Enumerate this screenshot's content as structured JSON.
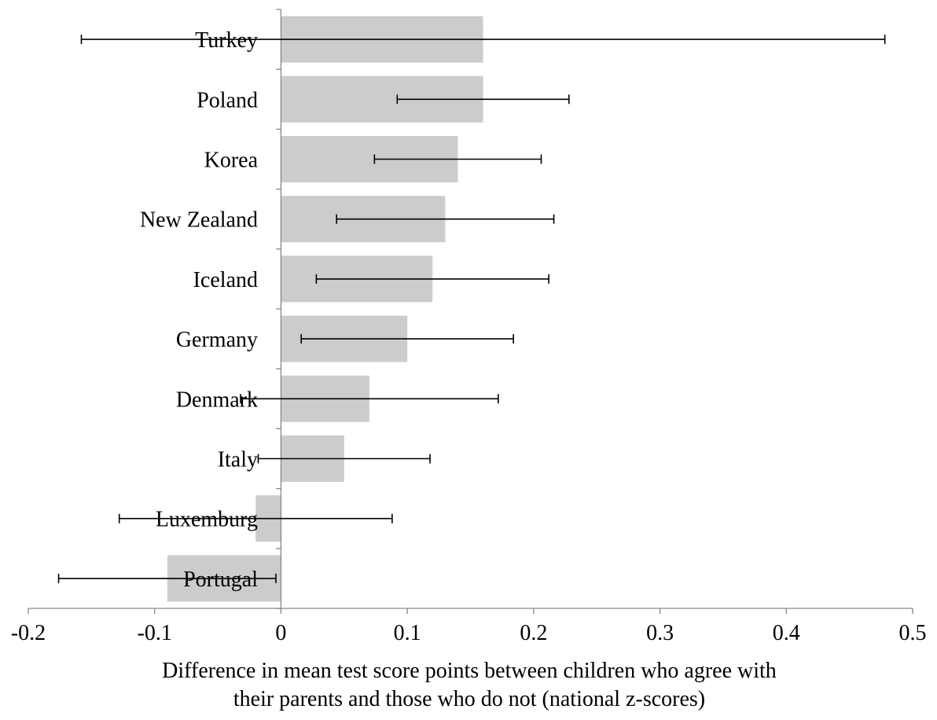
{
  "chart_data": {
    "type": "bar",
    "orientation": "horizontal",
    "categories": [
      "Turkey",
      "Poland",
      "Korea",
      "New Zealand",
      "Iceland",
      "Germany",
      "Denmark",
      "Italy",
      "Luxemburg",
      "Portugal"
    ],
    "values": [
      0.16,
      0.16,
      0.14,
      0.13,
      0.12,
      0.1,
      0.07,
      0.05,
      -0.02,
      -0.09
    ],
    "error_low": [
      -0.158,
      0.092,
      0.074,
      0.044,
      0.028,
      0.016,
      -0.032,
      -0.018,
      -0.128,
      -0.176
    ],
    "error_high": [
      0.478,
      0.228,
      0.206,
      0.216,
      0.212,
      0.184,
      0.172,
      0.118,
      0.088,
      -0.004
    ],
    "xlim": [
      -0.2,
      0.5
    ],
    "xticks": [
      "-0.2",
      "-0.1",
      "0",
      "0.1",
      "0.2",
      "0.3",
      "0.4",
      "0.5"
    ],
    "xtick_values": [
      -0.2,
      -0.1,
      0,
      0.1,
      0.2,
      0.3,
      0.4,
      0.5
    ],
    "xlabel_line1": "Difference in mean test score points between children who agree with",
    "xlabel_line2": "their parents and those who do not (national z-scores)",
    "grid": false,
    "legend": "none",
    "bar_color": "#cccccc",
    "axis_color": "#868686",
    "errorbar_color": "#000000"
  }
}
